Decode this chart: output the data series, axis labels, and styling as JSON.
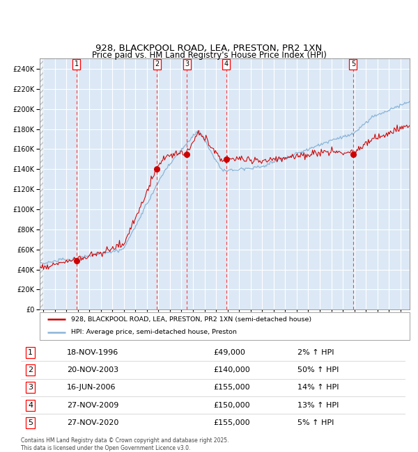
{
  "title1": "928, BLACKPOOL ROAD, LEA, PRESTON, PR2 1XN",
  "title2": "Price paid vs. HM Land Registry's House Price Index (HPI)",
  "legend_line1": "928, BLACKPOOL ROAD, LEA, PRESTON, PR2 1XN (semi-detached house)",
  "legend_line2": "HPI: Average price, semi-detached house, Preston",
  "footer": "Contains HM Land Registry data © Crown copyright and database right 2025.\nThis data is licensed under the Open Government Licence v3.0.",
  "sales": [
    {
      "num": 1,
      "date": "18-NOV-1996",
      "price": 49000,
      "pct": "2%",
      "x_year": 1996.88
    },
    {
      "num": 2,
      "date": "20-NOV-2003",
      "price": 140000,
      "pct": "50%",
      "x_year": 2003.88
    },
    {
      "num": 3,
      "date": "16-JUN-2006",
      "price": 155000,
      "pct": "14%",
      "x_year": 2006.46
    },
    {
      "num": 4,
      "date": "27-NOV-2009",
      "price": 150000,
      "pct": "13%",
      "x_year": 2009.9
    },
    {
      "num": 5,
      "date": "27-NOV-2020",
      "price": 155000,
      "pct": "5%",
      "x_year": 2020.9
    }
  ],
  "hpi_color": "#8AB4D8",
  "price_color": "#CC0000",
  "bg_color": "#DCE8F5",
  "grid_color": "#FFFFFF",
  "dashed_color": "#FF2222",
  "ylim": [
    0,
    250000
  ],
  "yticks": [
    0,
    20000,
    40000,
    60000,
    80000,
    100000,
    120000,
    140000,
    160000,
    180000,
    200000,
    220000,
    240000
  ],
  "xlim_start": 1993.7,
  "xlim_end": 2025.8
}
